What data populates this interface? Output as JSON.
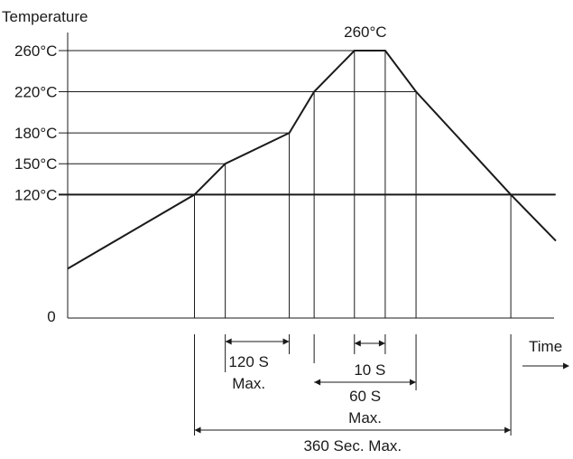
{
  "chart_data": {
    "type": "line",
    "ylabel": "Temperature",
    "xlabel": "Time",
    "origin_label": "0",
    "y_ticks": [
      {
        "value": 120,
        "label": "120°C"
      },
      {
        "value": 150,
        "label": "150°C"
      },
      {
        "value": 180,
        "label": "180°C"
      },
      {
        "value": 220,
        "label": "220°C"
      },
      {
        "value": 260,
        "label": "260°C"
      }
    ],
    "peak_label": "260°C",
    "profile": {
      "name": "",
      "points": [
        {
          "t": 0,
          "temp": 48
        },
        {
          "t": 107,
          "temp": 120
        },
        {
          "t": 133,
          "temp": 150
        },
        {
          "t": 187,
          "temp": 180
        },
        {
          "t": 208,
          "temp": 220
        },
        {
          "t": 242,
          "temp": 260
        },
        {
          "t": 268,
          "temp": 260
        },
        {
          "t": 294,
          "temp": 220
        },
        {
          "t": 374,
          "temp": 120
        },
        {
          "t": 412,
          "temp": 75
        }
      ]
    },
    "hold_line": {
      "temp": 120,
      "t_end": 392
    },
    "intervals": [
      {
        "t_start": 133,
        "t_end": 187,
        "label_lines": [
          "120 S",
          "Max."
        ]
      },
      {
        "t_start": 242,
        "t_end": 268,
        "label_lines": [
          "10 S"
        ]
      },
      {
        "t_start": 208,
        "t_end": 294,
        "label_lines": [
          "60 S",
          "Max."
        ]
      },
      {
        "t_start": 107,
        "t_end": 374,
        "label_lines": [
          "360 Sec. Max."
        ]
      }
    ],
    "ylim": [
      0,
      260
    ],
    "xlim": [
      0,
      412
    ],
    "grid": false
  }
}
